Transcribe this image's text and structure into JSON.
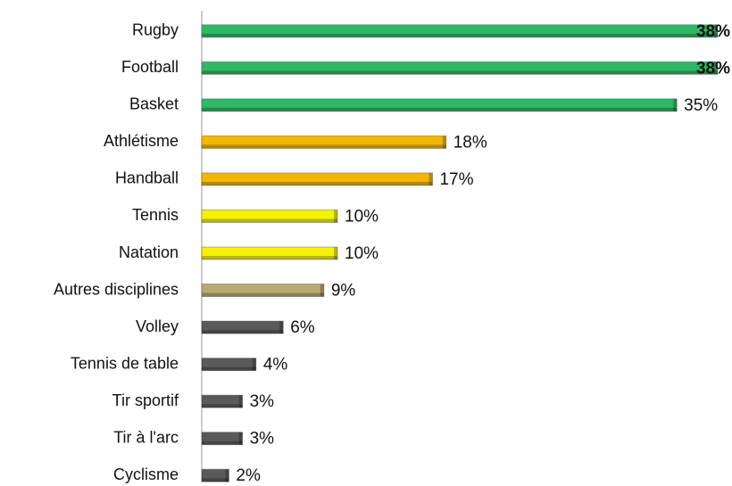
{
  "chart_data": {
    "type": "bar",
    "orientation": "horizontal",
    "categories": [
      "Rugby",
      "Football",
      "Basket",
      "Athlétisme",
      "Handball",
      "Tennis",
      "Natation",
      "Autres disciplines",
      "Volley",
      "Tennis de table",
      "Tir sportif",
      "Tir à l'arc",
      "Cyclisme"
    ],
    "values": [
      38,
      38,
      35,
      18,
      17,
      10,
      10,
      9,
      6,
      4,
      3,
      3,
      2
    ],
    "value_labels": [
      "38%",
      "38%",
      "35%",
      "18%",
      "17%",
      "10%",
      "10%",
      "9%",
      "6%",
      "4%",
      "3%",
      "3%",
      "2%"
    ],
    "colors": [
      "#2fb866",
      "#2fb866",
      "#2fb866",
      "#f2b705",
      "#f2b705",
      "#f5f20a",
      "#f5f20a",
      "#b8aa72",
      "#5a5a5a",
      "#5a5a5a",
      "#5a5a5a",
      "#5a5a5a",
      "#5a5a5a"
    ],
    "xlim": [
      0,
      39
    ]
  }
}
